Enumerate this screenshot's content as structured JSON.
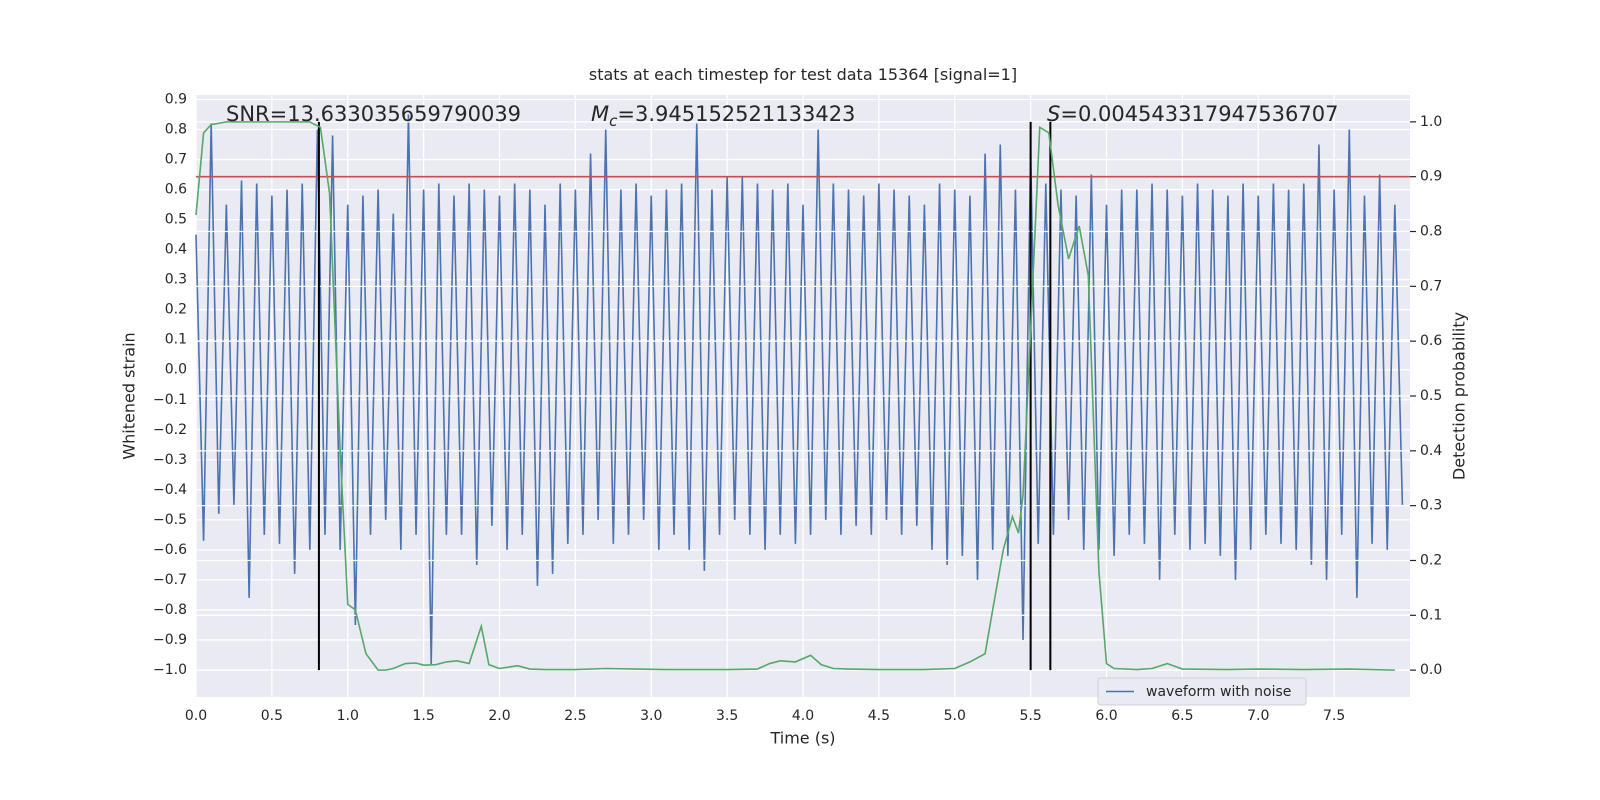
{
  "chart_data": {
    "type": "line",
    "title": "stats at each timestep for test data 15364 [signal=1]",
    "xlabel": "Time (s)",
    "ylabel": "Whitened strain",
    "y2label": "Detection probability",
    "xlim": [
      0,
      8.0
    ],
    "ylim": [
      -1.09,
      0.915
    ],
    "y2lim": [
      -0.049,
      1.049
    ],
    "xticks": [
      {
        "value": 0,
        "label": "0.0"
      },
      0.5,
      {
        "value": 1,
        "label": "1.0"
      },
      1.5,
      {
        "value": 2,
        "label": "2.0"
      },
      2.5,
      {
        "value": 3,
        "label": "3.0"
      },
      3.5,
      {
        "value": 4,
        "label": "4.0"
      },
      4.5,
      {
        "value": 5,
        "label": "5.0"
      },
      5.5,
      {
        "value": 6,
        "label": "6.0"
      },
      6.5,
      {
        "value": 7,
        "label": "7.0"
      },
      7.5
    ],
    "yticks": [
      {
        "value": -1,
        "label": "−1.0"
      },
      {
        "value": -0.9,
        "label": "−0.9"
      },
      {
        "value": -0.8,
        "label": "−0.8"
      },
      {
        "value": -0.7,
        "label": "−0.7"
      },
      {
        "value": -0.6,
        "label": "−0.6"
      },
      {
        "value": -0.5,
        "label": "−0.5"
      },
      {
        "value": -0.4,
        "label": "−0.4"
      },
      {
        "value": -0.3,
        "label": "−0.3"
      },
      {
        "value": -0.2,
        "label": "−0.2"
      },
      {
        "value": -0.1,
        "label": "−0.1"
      },
      {
        "value": 0,
        "label": "0.0"
      },
      0.1,
      0.2,
      0.3,
      0.4,
      0.5,
      0.6,
      0.7,
      0.8,
      0.9
    ],
    "y2ticks": [
      {
        "value": 0,
        "label": "0.0"
      },
      0.1,
      0.2,
      0.3,
      0.4,
      0.5,
      0.6,
      0.7,
      0.8,
      0.9,
      {
        "value": 1,
        "label": "1.0"
      }
    ],
    "grid": true,
    "legend": "lower right",
    "series": [
      {
        "name": "waveform with noise",
        "color": "#4c72b0",
        "axis": "y",
        "x": [
          0,
          0.05,
          0.1,
          0.15,
          0.2,
          0.25,
          0.3,
          0.35,
          0.4,
          0.45,
          0.5,
          0.55,
          0.6,
          0.65,
          0.7,
          0.75,
          0.8,
          0.85,
          0.9,
          0.95,
          1.0,
          1.05,
          1.1,
          1.15,
          1.2,
          1.25,
          1.3,
          1.35,
          1.4,
          1.45,
          1.5,
          1.55,
          1.6,
          1.65,
          1.7,
          1.75,
          1.8,
          1.85,
          1.9,
          1.95,
          2.0,
          2.05,
          2.1,
          2.15,
          2.2,
          2.25,
          2.3,
          2.35,
          2.4,
          2.45,
          2.5,
          2.55,
          2.6,
          2.65,
          2.7,
          2.75,
          2.8,
          2.85,
          2.9,
          2.95,
          3.0,
          3.05,
          3.1,
          3.15,
          3.2,
          3.25,
          3.3,
          3.35,
          3.4,
          3.45,
          3.5,
          3.55,
          3.6,
          3.65,
          3.7,
          3.75,
          3.8,
          3.85,
          3.9,
          3.95,
          4.0,
          4.05,
          4.1,
          4.15,
          4.2,
          4.25,
          4.3,
          4.35,
          4.4,
          4.45,
          4.5,
          4.55,
          4.6,
          4.65,
          4.7,
          4.75,
          4.8,
          4.85,
          4.9,
          4.95,
          5.0,
          5.05,
          5.1,
          5.15,
          5.2,
          5.25,
          5.3,
          5.35,
          5.4,
          5.45,
          5.5,
          5.55,
          5.6,
          5.65,
          5.7,
          5.75,
          5.8,
          5.85,
          5.9,
          5.95,
          6.0,
          6.05,
          6.1,
          6.15,
          6.2,
          6.25,
          6.3,
          6.35,
          6.4,
          6.45,
          6.5,
          6.55,
          6.6,
          6.65,
          6.7,
          6.75,
          6.8,
          6.85,
          6.9,
          6.95,
          7.0,
          7.05,
          7.1,
          7.15,
          7.2,
          7.25,
          7.3,
          7.35,
          7.4,
          7.45,
          7.5,
          7.55,
          7.6,
          7.65,
          7.7,
          7.75,
          7.8,
          7.85,
          7.9,
          7.95
        ],
        "values": [
          0.45,
          -0.57,
          0.82,
          -0.48,
          0.55,
          -0.45,
          0.63,
          -0.76,
          0.62,
          -0.55,
          0.58,
          -0.58,
          0.6,
          -0.68,
          0.62,
          -0.6,
          0.8,
          -0.55,
          0.78,
          -0.6,
          0.55,
          -0.85,
          0.58,
          -0.55,
          0.6,
          -0.5,
          0.52,
          -0.6,
          0.85,
          -0.55,
          0.6,
          -0.98,
          0.62,
          -0.55,
          0.58,
          -0.55,
          0.62,
          -0.65,
          0.6,
          -0.52,
          0.58,
          -0.6,
          0.62,
          -0.55,
          0.6,
          -0.72,
          0.55,
          -0.68,
          0.62,
          -0.58,
          0.6,
          -0.55,
          0.72,
          -0.5,
          0.8,
          -0.58,
          0.6,
          -0.55,
          0.62,
          -0.5,
          0.58,
          -0.6,
          0.6,
          -0.55,
          0.62,
          -0.6,
          0.82,
          -0.67,
          0.6,
          -0.55,
          0.64,
          -0.5,
          0.64,
          -0.55,
          0.62,
          -0.6,
          0.6,
          -0.55,
          0.62,
          -0.58,
          0.55,
          -0.55,
          0.8,
          -0.5,
          0.62,
          -0.55,
          0.6,
          -0.52,
          0.58,
          -0.55,
          0.62,
          -0.5,
          0.6,
          -0.55,
          0.58,
          -0.52,
          0.55,
          -0.6,
          0.62,
          -0.65,
          0.6,
          -0.62,
          0.58,
          -0.7,
          0.72,
          -0.6,
          0.75,
          -0.62,
          0.6,
          -0.9,
          0.72,
          -0.58,
          0.62,
          -0.55,
          0.6,
          -0.5,
          0.58,
          -0.6,
          0.65,
          -0.6,
          0.55,
          -0.62,
          0.6,
          -0.55,
          0.6,
          -0.58,
          0.62,
          -0.7,
          0.6,
          -0.55,
          0.58,
          -0.6,
          0.62,
          -0.58,
          0.6,
          -0.62,
          0.58,
          -0.7,
          0.62,
          -0.6,
          0.58,
          -0.55,
          0.62,
          -0.58,
          0.6,
          -0.6,
          0.62,
          -0.65,
          0.75,
          -0.7,
          0.6,
          -0.55,
          0.8,
          -0.76,
          0.58,
          -0.58,
          0.65,
          -0.6,
          0.55,
          -0.45
        ]
      },
      {
        "color": "#55a868",
        "axis": "y2",
        "x": [
          0,
          0.05,
          0.1,
          0.2,
          0.4,
          0.6,
          0.75,
          0.82,
          0.88,
          0.95,
          1.0,
          1.05,
          1.12,
          1.2,
          1.25,
          1.3,
          1.38,
          1.45,
          1.5,
          1.58,
          1.65,
          1.72,
          1.8,
          1.88,
          1.93,
          2.0,
          2.12,
          2.2,
          2.3,
          2.5,
          2.7,
          2.9,
          3.1,
          3.3,
          3.5,
          3.7,
          3.78,
          3.85,
          3.95,
          4.05,
          4.12,
          4.2,
          4.3,
          4.5,
          4.8,
          5.0,
          5.1,
          5.2,
          5.25,
          5.32,
          5.38,
          5.42,
          5.45,
          5.5,
          5.56,
          5.62,
          5.68,
          5.75,
          5.82,
          5.88,
          5.95,
          6.0,
          6.05,
          6.2,
          6.3,
          6.4,
          6.5,
          6.8,
          7.0,
          7.3,
          7.6,
          7.9
        ],
        "values": [
          0.83,
          0.98,
          0.995,
          1.0,
          1.0,
          1.0,
          1.0,
          0.99,
          0.87,
          0.4,
          0.12,
          0.11,
          0.03,
          0.0,
          0.0,
          0.003,
          0.012,
          0.013,
          0.009,
          0.01,
          0.015,
          0.017,
          0.012,
          0.08,
          0.01,
          0.003,
          0.008,
          0.002,
          0.001,
          0.001,
          0.003,
          0.002,
          0.001,
          0.001,
          0.001,
          0.002,
          0.012,
          0.017,
          0.015,
          0.027,
          0.01,
          0.003,
          0.002,
          0.001,
          0.001,
          0.003,
          0.015,
          0.03,
          0.11,
          0.22,
          0.28,
          0.25,
          0.32,
          0.62,
          0.99,
          0.98,
          0.85,
          0.75,
          0.81,
          0.72,
          0.18,
          0.012,
          0.003,
          0.001,
          0.003,
          0.012,
          0.002,
          0.001,
          0.002,
          0.001,
          0.002,
          0.0
        ]
      }
    ],
    "hlines": [
      {
        "y": 0.9,
        "axis": "y2",
        "color": "#c44e52"
      }
    ],
    "vlines": {
      "x": [
        0.81,
        5.5,
        5.63
      ],
      "ymin": 0,
      "ymax": 1,
      "axis": "y2",
      "color": "#000000"
    },
    "annotations": [
      {
        "text": "SNR=13.633035659790039"
      },
      {
        "symbol": "M",
        "subscript": "c",
        "text": "=3.945152521133423"
      },
      {
        "symbol": "S",
        "text": "=0.004543317947536707"
      }
    ]
  }
}
